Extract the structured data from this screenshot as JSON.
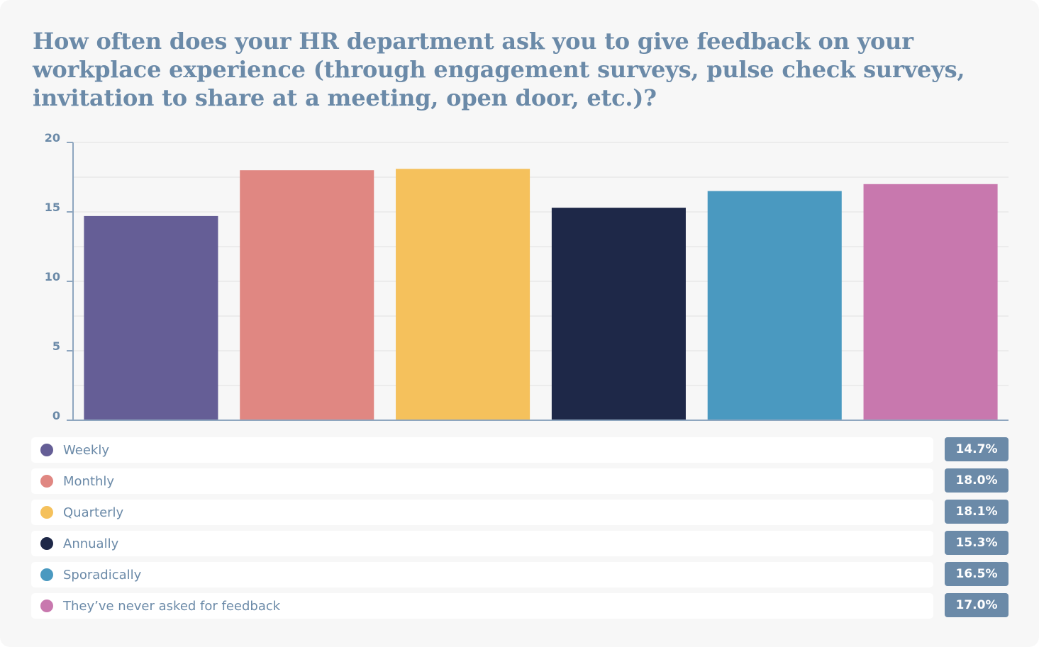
{
  "chart_data": {
    "type": "bar",
    "title": "How often does your HR department ask you to give feedback on your workplace experience (through engagement surveys, pulse check surveys, invitation to share at a meeting, open door, etc.)?",
    "xlabel": "",
    "ylabel": "",
    "ylim": [
      0,
      20
    ],
    "yticks": [
      "0",
      "5",
      "10",
      "15",
      "20"
    ],
    "grid": true,
    "legend_placement": "bottom",
    "categories": [
      "Weekly",
      "Monthly",
      "Quarterly",
      "Annually",
      "Sporadically",
      "They’ve never asked for feedback"
    ],
    "values": [
      14.7,
      18.0,
      18.1,
      15.3,
      16.5,
      17.0
    ],
    "value_labels": [
      "14.7%",
      "18.0%",
      "18.1%",
      "15.3%",
      "16.5%",
      "17.0%"
    ],
    "colors": [
      "#655e96",
      "#e08782",
      "#f5c15c",
      "#1e2848",
      "#4a99c0",
      "#c878ae"
    ]
  }
}
